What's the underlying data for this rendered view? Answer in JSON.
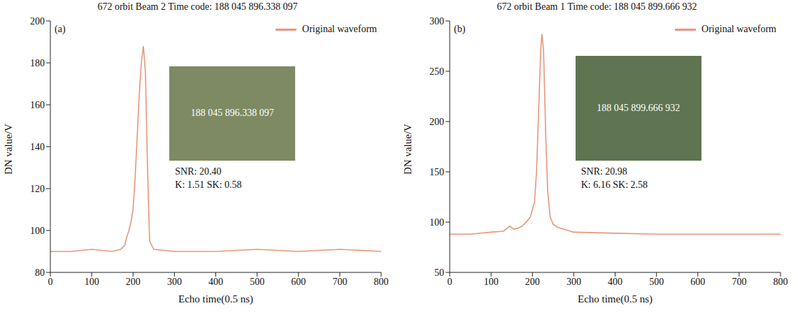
{
  "chart_data": [
    {
      "type": "line",
      "label": "(a)",
      "title": "672 orbit Beam 2 Time code: 188 045 896.338 097",
      "x_label": "Echo time(0.5 ns)",
      "y_label": "DN value/V",
      "xlim": [
        0,
        800
      ],
      "xticks": [
        0,
        100,
        200,
        300,
        400,
        500,
        600,
        700,
        800
      ],
      "ylim": [
        80,
        200
      ],
      "yticks": [
        80,
        100,
        120,
        140,
        160,
        180,
        200
      ],
      "legend": "upper right",
      "grid": false,
      "inset_label": "188 045 896.338 097",
      "annotations": [
        "SNR: 20.40",
        "K: 1.51 SK: 0.58"
      ],
      "x": [
        0,
        50,
        100,
        150,
        170,
        180,
        185,
        190,
        195,
        200,
        205,
        210,
        215,
        220,
        225,
        230,
        235,
        240,
        250,
        300,
        400,
        500,
        600,
        700,
        800
      ],
      "series": [
        {
          "name": "Original waveform",
          "color": "#e8967a",
          "values": [
            90,
            90,
            91,
            90,
            91,
            93,
            97,
            100,
            104,
            110,
            125,
            145,
            165,
            180,
            188,
            175,
            130,
            95,
            91,
            90,
            90,
            91,
            90,
            91,
            90
          ]
        }
      ]
    },
    {
      "type": "line",
      "label": "(b)",
      "title": "672 orbit Beam 1 Time code: 188 045 899.666 932",
      "x_label": "Echo time(0.5 ns)",
      "y_label": "DN value/V",
      "xlim": [
        0,
        800
      ],
      "xticks": [
        0,
        100,
        200,
        300,
        400,
        500,
        600,
        700,
        800
      ],
      "ylim": [
        50,
        300
      ],
      "yticks": [
        50,
        100,
        150,
        200,
        250,
        300
      ],
      "legend": "upper right",
      "grid": false,
      "inset_label": "188 045 899.666 932",
      "annotations": [
        "SNR: 20.98",
        "K: 6.16 SK: 2.58"
      ],
      "x": [
        0,
        50,
        100,
        130,
        145,
        155,
        165,
        175,
        185,
        195,
        205,
        210,
        215,
        220,
        223,
        227,
        232,
        237,
        243,
        250,
        260,
        300,
        400,
        500,
        600,
        700,
        800
      ],
      "series": [
        {
          "name": "Original waveform",
          "color": "#e8967a",
          "values": [
            88,
            88,
            90,
            91,
            96,
            93,
            94,
            96,
            100,
            105,
            120,
            150,
            210,
            270,
            287,
            270,
            190,
            130,
            105,
            98,
            95,
            90,
            89,
            88,
            88,
            88,
            88
          ]
        }
      ]
    }
  ]
}
